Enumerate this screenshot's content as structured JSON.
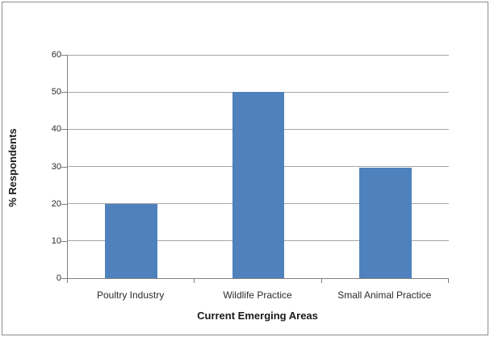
{
  "chart_data": {
    "type": "bar",
    "title": "",
    "categories": [
      "Poultry Industry",
      "Wildlife Practice",
      "Small Animal Practice"
    ],
    "values": [
      20,
      50,
      29.7
    ],
    "xlabel": "Current Emerging Areas",
    "ylabel": "% Respondents",
    "ylim": [
      0,
      60
    ],
    "ytick_step": 10,
    "yticks": [
      0,
      10,
      20,
      30,
      40,
      50,
      60
    ],
    "grid": true,
    "legend": false,
    "bar_width_frac": 0.41
  },
  "colors": {
    "bar": "#4F81BD",
    "gridline": "#A6A6A6",
    "axis": "#808080",
    "text": "#2B2B2B",
    "frame_border": "#8C8C8C",
    "background": "#FFFFFF"
  }
}
